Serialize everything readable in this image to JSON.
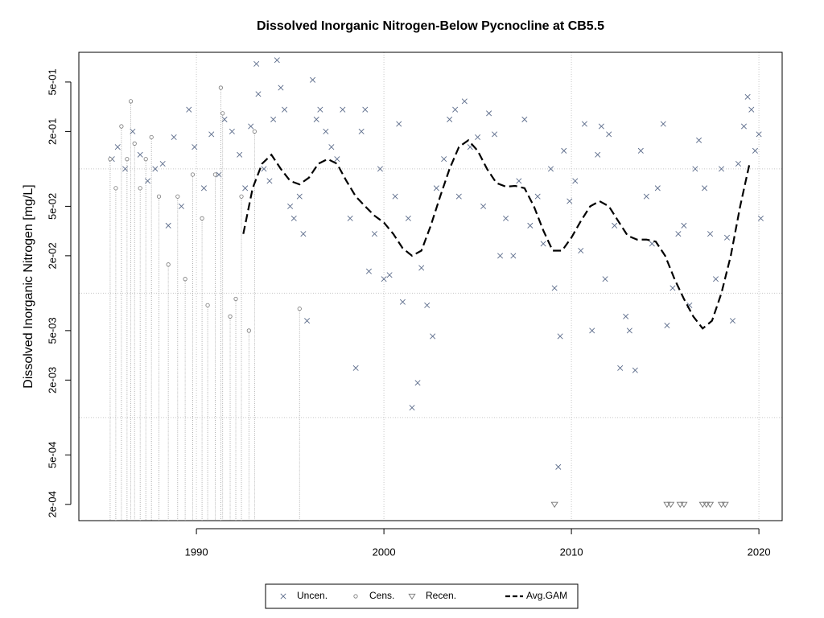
{
  "chart_data": {
    "type": "scatter",
    "title": "Dissolved Inorganic Nitrogen-Below Pycnocline at CB5.5",
    "y_label": "Dissolved Inorganic Nitrogen [mg/L]",
    "log_y": true,
    "xlim": [
      1983.73,
      2021.24
    ],
    "ylim": [
      0.000148,
      0.867
    ],
    "xticks": [
      1990,
      2000,
      2010,
      2020
    ],
    "yticks": [
      {
        "value": 0.5,
        "label": "5e-01"
      },
      {
        "value": 0.2,
        "label": "2e-01"
      },
      {
        "value": 0.05,
        "label": "5e-02"
      },
      {
        "value": 0.02,
        "label": "2e-02"
      },
      {
        "value": 0.005,
        "label": "5e-03"
      },
      {
        "value": 0.002,
        "label": "2e-03"
      },
      {
        "value": 0.0005,
        "label": "5e-04"
      },
      {
        "value": 0.0002,
        "label": "2e-04"
      }
    ],
    "grid": true,
    "y_grid": [
      0.1,
      0.01,
      0.001
    ],
    "legend_position": "bottom",
    "series": [
      {
        "name": "Uncen.",
        "marker": "x",
        "color": "#5b6b8a",
        "x": [
          1985.5,
          1985.8,
          1986.2,
          1986.6,
          1987.0,
          1987.4,
          1987.8,
          1988.2,
          1988.5,
          1988.8,
          1989.2,
          1989.6,
          1989.9,
          1990.4,
          1990.8,
          1991.2,
          1991.5,
          1991.9,
          1992.3,
          1992.6,
          1992.9,
          1993.2,
          1993.3,
          1993.6,
          1993.9,
          1994.1,
          1994.3,
          1994.5,
          1994.7,
          1995.0,
          1995.2,
          1995.5,
          1995.7,
          1995.9,
          1996.2,
          1996.4,
          1996.6,
          1996.9,
          1997.2,
          1997.5,
          1997.8,
          1998.2,
          1998.5,
          1998.8,
          1999.0,
          1999.2,
          1999.5,
          1999.8,
          2000.0,
          2000.3,
          2000.6,
          2000.8,
          2001.0,
          2001.3,
          2001.5,
          2001.8,
          2002.0,
          2002.3,
          2002.6,
          2002.8,
          2003.2,
          2003.5,
          2003.8,
          2004.0,
          2004.3,
          2004.6,
          2005.0,
          2005.3,
          2005.6,
          2005.9,
          2006.2,
          2006.5,
          2006.9,
          2007.2,
          2007.5,
          2007.8,
          2008.2,
          2008.5,
          2008.9,
          2009.1,
          2009.3,
          2009.4,
          2009.6,
          2009.9,
          2010.2,
          2010.5,
          2010.7,
          2011.1,
          2011.4,
          2011.6,
          2011.8,
          2012.0,
          2012.3,
          2012.6,
          2012.9,
          2013.1,
          2013.4,
          2013.7,
          2014.0,
          2014.3,
          2014.6,
          2014.9,
          2015.1,
          2015.4,
          2015.7,
          2016.0,
          2016.3,
          2016.6,
          2016.8,
          2017.1,
          2017.4,
          2017.7,
          2018.0,
          2018.3,
          2018.6,
          2018.9,
          2019.2,
          2019.4,
          2019.6,
          2019.8,
          2020.0,
          2020.1
        ],
        "values": [
          0.12,
          0.15,
          0.1,
          0.2,
          0.13,
          0.08,
          0.1,
          0.11,
          0.035,
          0.18,
          0.05,
          0.3,
          0.15,
          0.07,
          0.19,
          0.09,
          0.25,
          0.2,
          0.13,
          0.07,
          0.22,
          0.7,
          0.4,
          0.1,
          0.08,
          0.25,
          0.75,
          0.45,
          0.3,
          0.05,
          0.04,
          0.06,
          0.03,
          0.006,
          0.52,
          0.25,
          0.3,
          0.2,
          0.15,
          0.12,
          0.3,
          0.04,
          0.0025,
          0.2,
          0.3,
          0.015,
          0.03,
          0.1,
          0.013,
          0.014,
          0.06,
          0.23,
          0.0085,
          0.04,
          0.0012,
          0.0019,
          0.016,
          0.008,
          0.0045,
          0.07,
          0.12,
          0.25,
          0.3,
          0.06,
          0.35,
          0.15,
          0.18,
          0.05,
          0.28,
          0.19,
          0.02,
          0.04,
          0.02,
          0.08,
          0.25,
          0.035,
          0.06,
          0.025,
          0.1,
          0.011,
          0.0004,
          0.0045,
          0.14,
          0.055,
          0.08,
          0.022,
          0.23,
          0.005,
          0.13,
          0.22,
          0.013,
          0.19,
          0.035,
          0.0025,
          0.0065,
          0.005,
          0.0024,
          0.14,
          0.06,
          0.025,
          0.07,
          0.23,
          0.0055,
          0.011,
          0.03,
          0.035,
          0.008,
          0.1,
          0.17,
          0.07,
          0.03,
          0.013,
          0.1,
          0.028,
          0.006,
          0.11,
          0.22,
          0.38,
          0.3,
          0.14,
          0.19,
          0.04
        ]
      },
      {
        "name": "Cens.",
        "marker": "circle",
        "color": "#777777",
        "x": [
          1985.4,
          1985.7,
          1986.0,
          1986.3,
          1986.5,
          1986.7,
          1987.0,
          1987.3,
          1987.6,
          1988.0,
          1988.5,
          1989.0,
          1989.4,
          1989.8,
          1990.3,
          1990.6,
          1991.0,
          1991.3,
          1991.4,
          1991.8,
          1992.1,
          1992.4,
          1992.8,
          1993.1,
          1995.5
        ],
        "values": [
          0.12,
          0.07,
          0.22,
          0.12,
          0.35,
          0.16,
          0.07,
          0.12,
          0.18,
          0.06,
          0.017,
          0.06,
          0.013,
          0.09,
          0.04,
          0.008,
          0.09,
          0.45,
          0.28,
          0.0065,
          0.009,
          0.06,
          0.005,
          0.2,
          0.0075
        ]
      },
      {
        "name": "Recen.",
        "marker": "triangle",
        "color": "#777777",
        "x": [
          2009.1,
          2015.1,
          2015.3,
          2015.8,
          2016.0,
          2017.0,
          2017.2,
          2017.4,
          2018.0,
          2018.2
        ],
        "values": [
          0.0002,
          0.0002,
          0.0002,
          0.0002,
          0.0002,
          0.0002,
          0.0002,
          0.0002,
          0.0002,
          0.0002
        ]
      },
      {
        "name": "Avg.GAM",
        "marker": "dashed-line",
        "color": "#000000",
        "x": [
          1992.5,
          1993.0,
          1993.5,
          1994.0,
          1994.5,
          1995.0,
          1995.5,
          1996.0,
          1996.5,
          1997.0,
          1997.5,
          1998.0,
          1998.5,
          1999.0,
          1999.5,
          2000.0,
          2000.5,
          2001.0,
          2001.5,
          2002.0,
          2002.5,
          2003.0,
          2003.5,
          2004.0,
          2004.5,
          2005.0,
          2005.5,
          2006.0,
          2006.5,
          2007.0,
          2007.5,
          2008.0,
          2008.5,
          2009.0,
          2009.5,
          2010.0,
          2010.5,
          2011.0,
          2011.5,
          2012.0,
          2012.5,
          2013.0,
          2013.5,
          2014.0,
          2014.5,
          2015.0,
          2015.5,
          2016.0,
          2016.5,
          2017.0,
          2017.5,
          2018.0,
          2018.5,
          2019.0,
          2019.5
        ],
        "values": [
          0.03,
          0.07,
          0.11,
          0.13,
          0.1,
          0.08,
          0.075,
          0.085,
          0.11,
          0.12,
          0.11,
          0.08,
          0.06,
          0.05,
          0.042,
          0.037,
          0.03,
          0.023,
          0.02,
          0.022,
          0.035,
          0.06,
          0.1,
          0.15,
          0.17,
          0.14,
          0.1,
          0.077,
          0.072,
          0.073,
          0.07,
          0.05,
          0.032,
          0.022,
          0.022,
          0.028,
          0.038,
          0.05,
          0.055,
          0.05,
          0.038,
          0.029,
          0.027,
          0.027,
          0.026,
          0.02,
          0.013,
          0.009,
          0.0065,
          0.0052,
          0.006,
          0.01,
          0.02,
          0.05,
          0.11
        ]
      }
    ]
  }
}
